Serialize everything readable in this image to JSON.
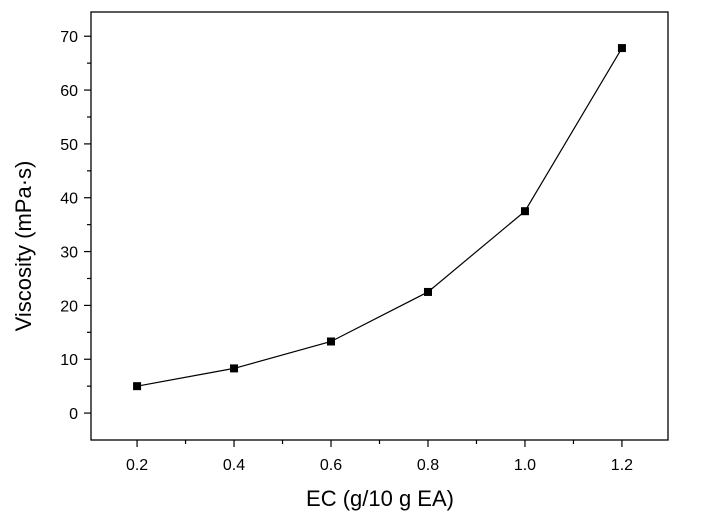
{
  "chart_data": {
    "type": "line",
    "xlabel": "EC (g/10 g EA)",
    "ylabel": "Viscosity (mPa·s)",
    "x": [
      0.2,
      0.4,
      0.6,
      0.8,
      1.0,
      1.2
    ],
    "series": [
      {
        "values": [
          5.0,
          8.3,
          13.3,
          22.5,
          37.5,
          67.8
        ]
      }
    ],
    "xlim": [
      0.105,
      1.295
    ],
    "ylim": [
      -5,
      74.5
    ],
    "xticks": [
      0.2,
      0.4,
      0.6,
      0.8,
      1.0,
      1.2
    ],
    "xtick_labels": [
      "0.2",
      "0.4",
      "0.6",
      "0.8",
      "1.0",
      "1.2"
    ],
    "yticks": [
      0,
      10,
      20,
      30,
      40,
      50,
      60,
      70
    ],
    "ytick_labels": [
      "0",
      "10",
      "20",
      "30",
      "40",
      "50",
      "60",
      "70"
    ],
    "grid": false,
    "marker": "square",
    "colors": {
      "line": "#000000",
      "marker": "#000000",
      "axis": "#000000",
      "background": "#ffffff"
    }
  }
}
